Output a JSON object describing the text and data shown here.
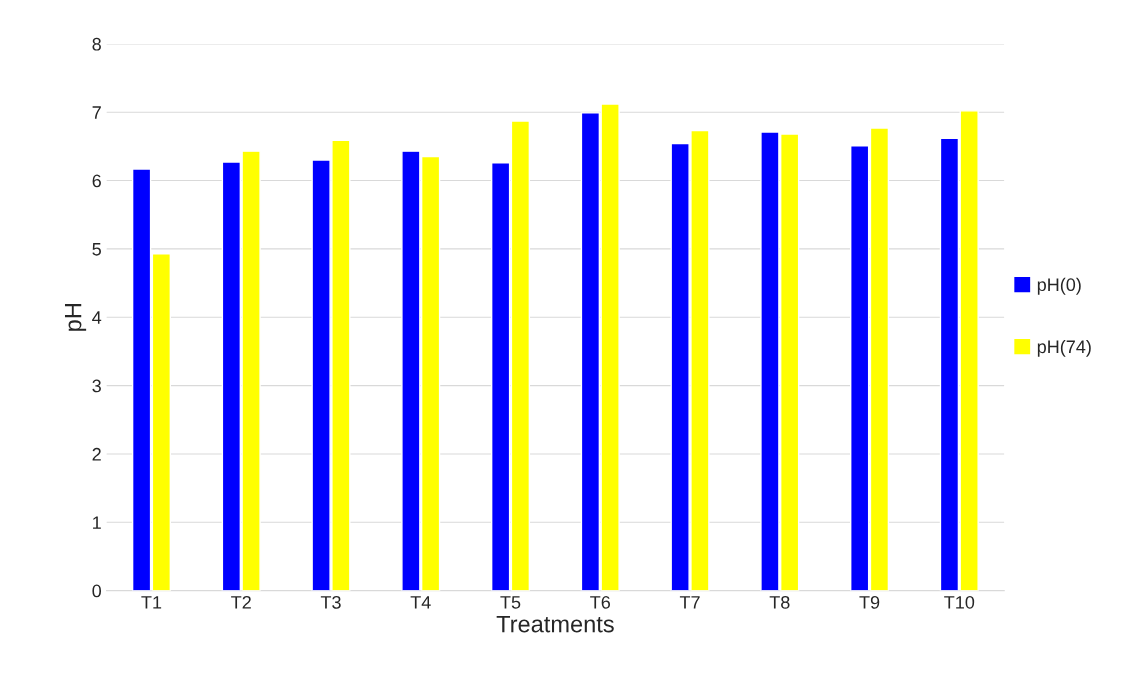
{
  "chart_data": {
    "type": "bar",
    "xlabel": "Treatments",
    "ylabel": "pH",
    "categories": [
      "T1",
      "T2",
      "T3",
      "T4",
      "T5",
      "T6",
      "T7",
      "T8",
      "T9",
      "T10"
    ],
    "series": [
      {
        "name": "pH(0)",
        "color": "#0000ff",
        "values": [
          6.17,
          6.27,
          6.3,
          6.43,
          6.26,
          6.99,
          6.54,
          6.71,
          6.51,
          6.62
        ]
      },
      {
        "name": "pH(74)",
        "color": "#ffff00",
        "values": [
          4.93,
          6.43,
          6.59,
          6.35,
          6.87,
          7.12,
          6.73,
          6.68,
          6.77,
          7.02
        ]
      }
    ],
    "ylim": [
      0,
      8
    ],
    "yticks": [
      0,
      1,
      2,
      3,
      4,
      5,
      6,
      7,
      8
    ],
    "grid": "y",
    "legend": "right"
  }
}
